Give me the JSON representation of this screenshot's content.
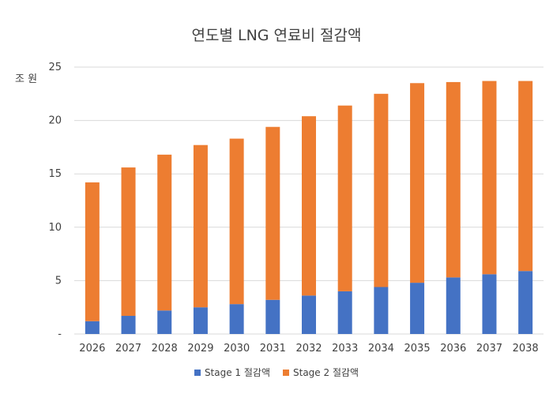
{
  "chart_data": {
    "type": "bar",
    "stacked": true,
    "title": "연도별 LNG 연료비 절감액",
    "ylabel": "조 원",
    "xlabel": "",
    "ylim": [
      0,
      25
    ],
    "yticks": [
      0,
      5,
      10,
      15,
      20,
      25
    ],
    "ytick_labels": [
      "-",
      "5",
      "10",
      "15",
      "20",
      "25"
    ],
    "grid": true,
    "legend_position": "bottom",
    "categories": [
      "2026",
      "2027",
      "2028",
      "2029",
      "2030",
      "2031",
      "2032",
      "2033",
      "2034",
      "2035",
      "2036",
      "2037",
      "2038"
    ],
    "series": [
      {
        "name": "Stage 1 절감액",
        "color": "#4472C4",
        "values": [
          1.2,
          1.7,
          2.2,
          2.5,
          2.8,
          3.2,
          3.6,
          4.0,
          4.4,
          4.8,
          5.3,
          5.6,
          5.9
        ]
      },
      {
        "name": "Stage 2 절감액",
        "color": "#ED7D31",
        "values": [
          13.0,
          13.9,
          14.6,
          15.2,
          15.5,
          16.2,
          16.8,
          17.4,
          18.1,
          18.7,
          18.3,
          18.1,
          17.8
        ]
      }
    ]
  }
}
